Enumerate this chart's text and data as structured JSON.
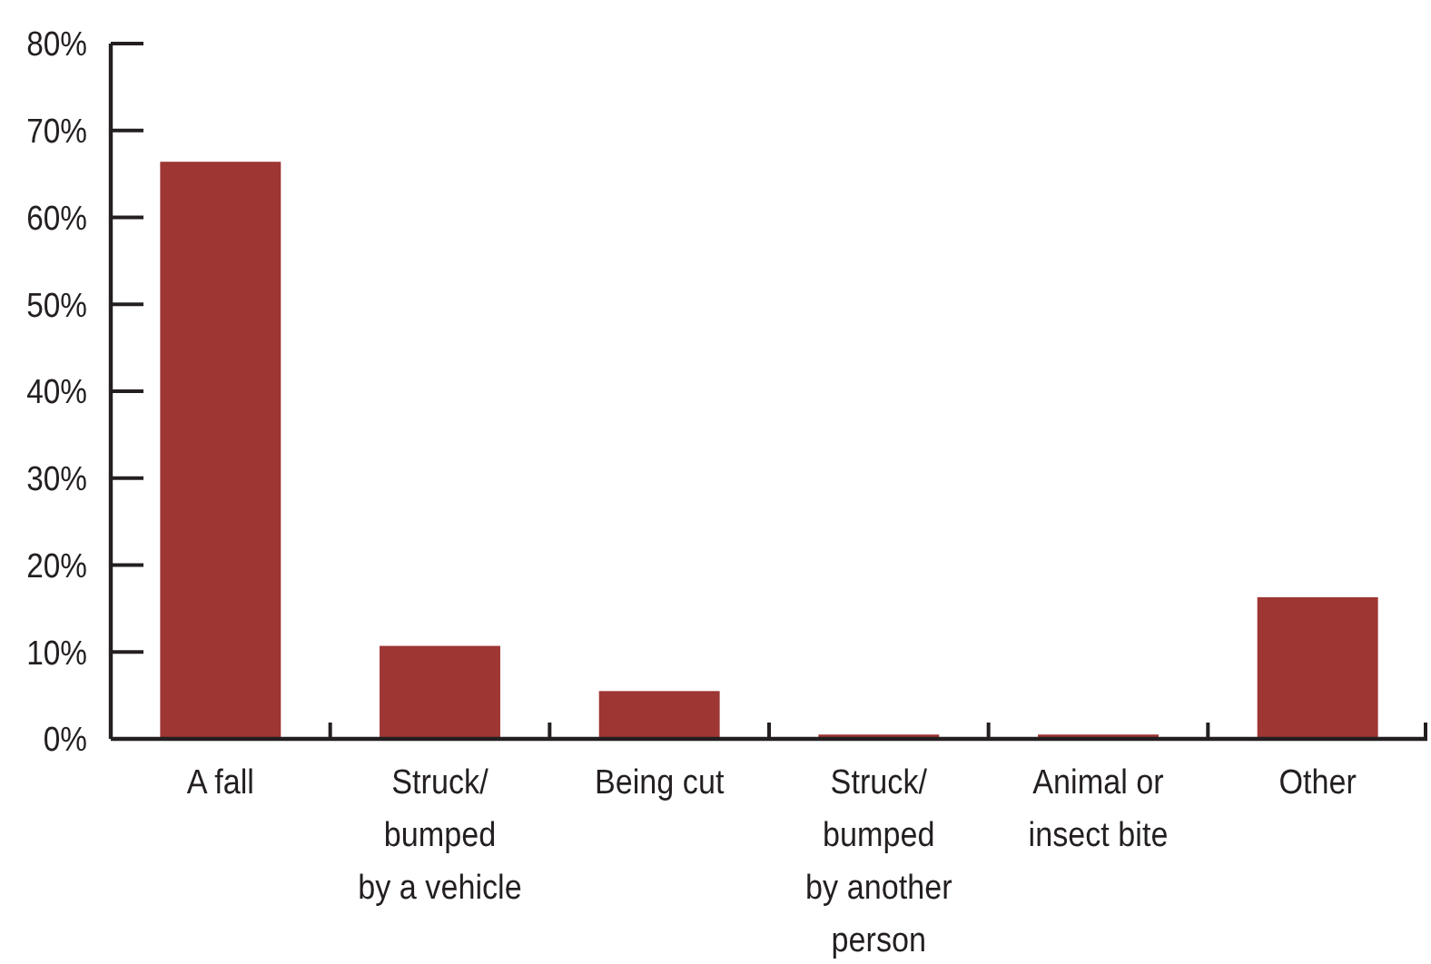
{
  "chart_data": {
    "type": "bar",
    "categories": [
      "A fall",
      "Struck/\nbumped\nby a vehicle",
      "Being cut",
      "Struck/\nbumped\nby another\nperson",
      "Animal or\ninsect bite",
      "Other"
    ],
    "values": [
      66.4,
      10.7,
      5.5,
      0.5,
      0.5,
      16.3
    ],
    "color": "#9e3634",
    "ylim": [
      0,
      80
    ],
    "yticks": [
      {
        "value": 0,
        "label": "0%"
      },
      {
        "value": 10,
        "label": "10%"
      },
      {
        "value": 20,
        "label": "20%"
      },
      {
        "value": 30,
        "label": "30%"
      },
      {
        "value": 40,
        "label": "40%"
      },
      {
        "value": 50,
        "label": "50%"
      },
      {
        "value": 60,
        "label": "60%"
      },
      {
        "value": 70,
        "label": "70%"
      },
      {
        "value": 80,
        "label": "80%"
      }
    ],
    "grid": false
  }
}
